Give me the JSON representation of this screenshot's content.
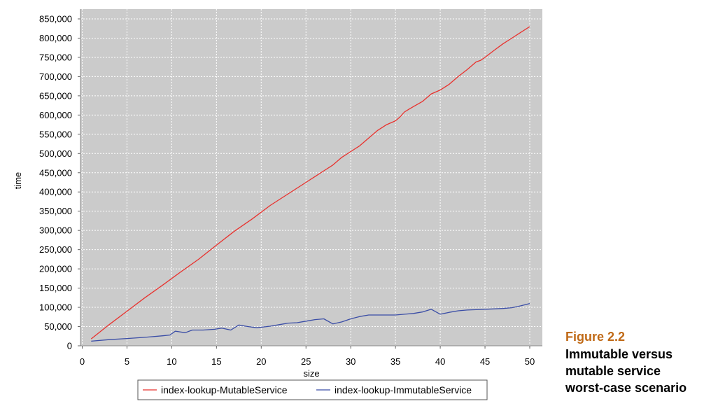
{
  "chart_data": {
    "type": "line",
    "xlabel": "size",
    "ylabel": "time",
    "xlim": [
      0,
      52
    ],
    "ylim": [
      0,
      875000
    ],
    "xticks": [
      0,
      5,
      10,
      15,
      20,
      25,
      30,
      35,
      40,
      45,
      50
    ],
    "yticks": [
      0,
      50000,
      100000,
      150000,
      200000,
      250000,
      300000,
      350000,
      400000,
      450000,
      500000,
      550000,
      600000,
      650000,
      700000,
      750000,
      800000,
      850000
    ],
    "xtick_labels": [
      "0",
      "5",
      "10",
      "15",
      "20",
      "25",
      "30",
      "35",
      "40",
      "45",
      "50"
    ],
    "ytick_labels": [
      "0",
      "50,000",
      "100,000",
      "150,000",
      "200,000",
      "250,000",
      "300,000",
      "350,000",
      "400,000",
      "450,000",
      "500,000",
      "550,000",
      "600,000",
      "650,000",
      "700,000",
      "750,000",
      "800,000",
      "850,000"
    ],
    "grid": true,
    "legend_position": "bottom",
    "series": [
      {
        "name": "index-lookup-MutableService",
        "color": "#e8322e",
        "points": [
          [
            1,
            18000
          ],
          [
            3,
            55000
          ],
          [
            5,
            90000
          ],
          [
            7,
            125000
          ],
          [
            9,
            158000
          ],
          [
            11,
            192000
          ],
          [
            13,
            225000
          ],
          [
            15,
            262000
          ],
          [
            17,
            298000
          ],
          [
            19,
            330000
          ],
          [
            21,
            365000
          ],
          [
            23,
            395000
          ],
          [
            25,
            425000
          ],
          [
            26,
            440000
          ],
          [
            27,
            455000
          ],
          [
            28,
            470000
          ],
          [
            28.5,
            480000
          ],
          [
            29,
            490000
          ],
          [
            30,
            505000
          ],
          [
            31,
            520000
          ],
          [
            32,
            540000
          ],
          [
            33,
            560000
          ],
          [
            34,
            575000
          ],
          [
            35,
            585000
          ],
          [
            35.5,
            595000
          ],
          [
            36,
            608000
          ],
          [
            36.5,
            615000
          ],
          [
            37,
            622000
          ],
          [
            38,
            635000
          ],
          [
            39,
            655000
          ],
          [
            40,
            665000
          ],
          [
            41,
            680000
          ],
          [
            42,
            700000
          ],
          [
            43,
            718000
          ],
          [
            44,
            738000
          ],
          [
            44.5,
            742000
          ],
          [
            45,
            750000
          ],
          [
            46,
            768000
          ],
          [
            47,
            785000
          ],
          [
            48,
            800000
          ],
          [
            49,
            815000
          ],
          [
            50,
            830000
          ]
        ]
      },
      {
        "name": "index-lookup-ImmutableService",
        "color": "#3a4da6",
        "points": [
          [
            1,
            12000
          ],
          [
            3,
            16000
          ],
          [
            5,
            19000
          ],
          [
            7,
            22000
          ],
          [
            9,
            26000
          ],
          [
            9.8,
            28000
          ],
          [
            10.4,
            38000
          ],
          [
            11.5,
            34000
          ],
          [
            12.3,
            41000
          ],
          [
            13.5,
            41000
          ],
          [
            14.8,
            43000
          ],
          [
            15.6,
            46000
          ],
          [
            16.6,
            41000
          ],
          [
            17.5,
            54000
          ],
          [
            18.5,
            50000
          ],
          [
            19.5,
            47000
          ],
          [
            21,
            51000
          ],
          [
            22,
            55000
          ],
          [
            23,
            59000
          ],
          [
            24,
            60000
          ],
          [
            25,
            64000
          ],
          [
            26,
            68000
          ],
          [
            27,
            70000
          ],
          [
            28,
            57000
          ],
          [
            29,
            62000
          ],
          [
            30,
            70000
          ],
          [
            31,
            76000
          ],
          [
            32,
            80000
          ],
          [
            33,
            80000
          ],
          [
            34,
            80000
          ],
          [
            35,
            80000
          ],
          [
            36,
            82000
          ],
          [
            37,
            84000
          ],
          [
            38,
            88000
          ],
          [
            39,
            95000
          ],
          [
            40,
            82000
          ],
          [
            41,
            87000
          ],
          [
            42,
            91000
          ],
          [
            43,
            93000
          ],
          [
            44,
            94000
          ],
          [
            45,
            95000
          ],
          [
            46,
            96000
          ],
          [
            47,
            97000
          ],
          [
            48,
            99000
          ],
          [
            49,
            104000
          ],
          [
            50,
            110000
          ]
        ]
      }
    ]
  },
  "caption": {
    "number": "Figure 2.2",
    "title_lines": [
      "Immutable versus",
      "mutable service",
      "worst-case scenario"
    ]
  }
}
